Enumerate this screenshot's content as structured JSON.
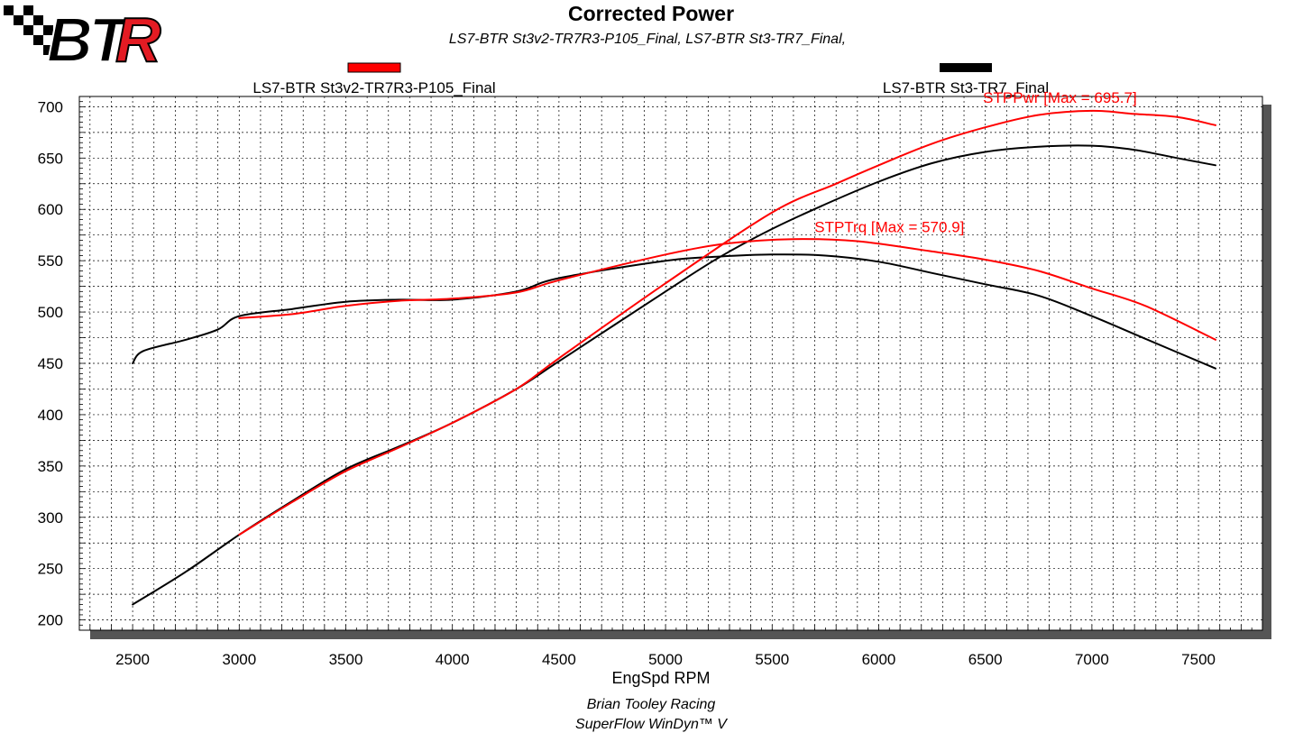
{
  "logo_text": "BTR",
  "chart_data": {
    "type": "line",
    "title": "Corrected Power",
    "subtitle": "LS7-BTR St3v2-TR7R3-P105_Final, LS7-BTR St3-TR7_Final,",
    "xlabel": "EngSpd RPM",
    "ylabel": "",
    "xlim": [
      2250,
      7800
    ],
    "ylim": [
      190,
      710
    ],
    "x_ticks": [
      2500,
      3000,
      3500,
      4000,
      4500,
      5000,
      5500,
      6000,
      6500,
      7000,
      7500
    ],
    "y_ticks": [
      200,
      250,
      300,
      350,
      400,
      450,
      500,
      550,
      600,
      650,
      700
    ],
    "grid": true,
    "legend": [
      {
        "name": "LS7-BTR St3v2-TR7R3-P105_Final",
        "color": "#ff0000"
      },
      {
        "name": "LS7-BTR St3-TR7_Final",
        "color": "#000000"
      }
    ],
    "series": [
      {
        "run": "LS7-BTR St3v2-TR7R3-P105_Final",
        "channel": "STPPwr",
        "color": "#ff0000",
        "points": [
          [
            3000,
            283
          ],
          [
            3250,
            315
          ],
          [
            3500,
            345
          ],
          [
            3750,
            368
          ],
          [
            4000,
            392
          ],
          [
            4300,
            425
          ],
          [
            4500,
            455
          ],
          [
            5000,
            528
          ],
          [
            5500,
            597
          ],
          [
            5800,
            625
          ],
          [
            6000,
            643
          ],
          [
            6250,
            664
          ],
          [
            6500,
            680
          ],
          [
            6750,
            692
          ],
          [
            7000,
            696
          ],
          [
            7200,
            693
          ],
          [
            7400,
            690
          ],
          [
            7580,
            682
          ]
        ]
      },
      {
        "run": "LS7-BTR St3v2-TR7R3-P105_Final",
        "channel": "STPTrq",
        "color": "#ff0000",
        "points": [
          [
            3000,
            494
          ],
          [
            3250,
            498
          ],
          [
            3500,
            506
          ],
          [
            3750,
            511
          ],
          [
            4000,
            513
          ],
          [
            4300,
            519
          ],
          [
            4500,
            531
          ],
          [
            5000,
            556
          ],
          [
            5300,
            567
          ],
          [
            5600,
            571
          ],
          [
            5900,
            569
          ],
          [
            6250,
            559
          ],
          [
            6500,
            551
          ],
          [
            6750,
            540
          ],
          [
            7000,
            523
          ],
          [
            7250,
            506
          ],
          [
            7580,
            473
          ]
        ]
      },
      {
        "run": "LS7-BTR St3-TR7_Final",
        "channel": "STPPwr",
        "color": "#000000",
        "points": [
          [
            2500,
            215
          ],
          [
            2750,
            247
          ],
          [
            3000,
            283
          ],
          [
            3250,
            316
          ],
          [
            3500,
            347
          ],
          [
            3750,
            369
          ],
          [
            4000,
            392
          ],
          [
            4300,
            425
          ],
          [
            4500,
            452
          ],
          [
            5000,
            520
          ],
          [
            5250,
            553
          ],
          [
            5500,
            581
          ],
          [
            5750,
            605
          ],
          [
            6000,
            627
          ],
          [
            6250,
            645
          ],
          [
            6500,
            656
          ],
          [
            6750,
            661
          ],
          [
            7000,
            662
          ],
          [
            7200,
            658
          ],
          [
            7400,
            650
          ],
          [
            7580,
            643
          ]
        ]
      },
      {
        "run": "LS7-BTR St3-TR7_Final",
        "channel": "STPTrq",
        "color": "#000000",
        "points": [
          [
            2500,
            450
          ],
          [
            2550,
            462
          ],
          [
            2750,
            473
          ],
          [
            2900,
            483
          ],
          [
            3000,
            496
          ],
          [
            3250,
            503
          ],
          [
            3500,
            510
          ],
          [
            3750,
            512
          ],
          [
            4000,
            512
          ],
          [
            4300,
            520
          ],
          [
            4500,
            533
          ],
          [
            5000,
            550
          ],
          [
            5250,
            554
          ],
          [
            5500,
            556
          ],
          [
            5750,
            555
          ],
          [
            6000,
            549
          ],
          [
            6250,
            538
          ],
          [
            6500,
            527
          ],
          [
            6750,
            516
          ],
          [
            7000,
            496
          ],
          [
            7250,
            474
          ],
          [
            7580,
            445
          ]
        ]
      }
    ],
    "annotations": [
      {
        "text": "STPPwr [Max = 695.7]",
        "color": "#ff0000",
        "at": [
          6850,
          704
        ]
      },
      {
        "text": "STPTrq [Max = 570.9]",
        "color": "#ff0000",
        "at": [
          6050,
          578
        ]
      }
    ]
  },
  "footer": {
    "line1": "Brian Tooley Racing",
    "line2": "SuperFlow WinDyn™ V"
  }
}
